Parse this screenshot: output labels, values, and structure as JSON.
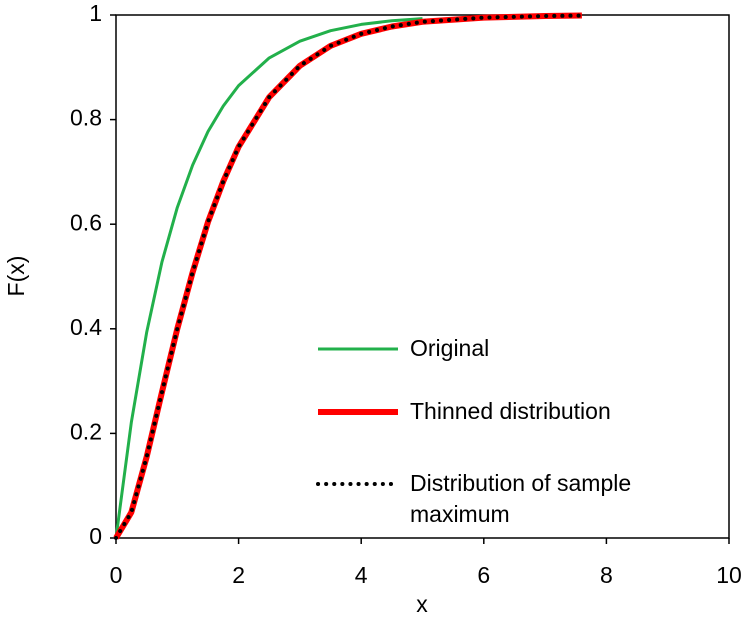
{
  "chart_data": {
    "type": "line",
    "xlabel": "x",
    "ylabel": "F(x)",
    "x": [
      0,
      0.25,
      0.5,
      0.75,
      1,
      1.25,
      1.5,
      1.75,
      2,
      2.5,
      3,
      3.5,
      4,
      4.5,
      5,
      6,
      7,
      7.6
    ],
    "series": [
      {
        "name": "Original",
        "color": "#22b04b",
        "style": "solid",
        "width": 3,
        "values": [
          0,
          0.221,
          0.393,
          0.528,
          0.632,
          0.713,
          0.777,
          0.826,
          0.865,
          0.918,
          0.95,
          0.97,
          0.982,
          0.989,
          0.993,
          null,
          null,
          null
        ]
      },
      {
        "name": "Thinned distribution",
        "color": "#ff0000",
        "style": "solid",
        "width": 6,
        "values": [
          0,
          0.049,
          0.155,
          0.279,
          0.4,
          0.508,
          0.604,
          0.682,
          0.748,
          0.843,
          0.903,
          0.941,
          0.964,
          0.978,
          0.987,
          0.995,
          0.998,
          0.999
        ]
      },
      {
        "name": "Distribution of sample maximum",
        "color": "#000000",
        "style": "dotted",
        "width": 4,
        "values": [
          0,
          0.049,
          0.155,
          0.279,
          0.4,
          0.508,
          0.604,
          0.682,
          0.748,
          0.843,
          0.903,
          0.941,
          0.964,
          0.978,
          0.987,
          0.995,
          0.998,
          0.999
        ]
      }
    ],
    "xlim": [
      0,
      10
    ],
    "xticks": [
      0,
      2,
      4,
      6,
      8,
      10
    ],
    "ylim": [
      0,
      1
    ],
    "yticks": [
      0,
      0.2,
      0.4,
      0.6,
      0.8,
      1
    ],
    "grid": false
  }
}
